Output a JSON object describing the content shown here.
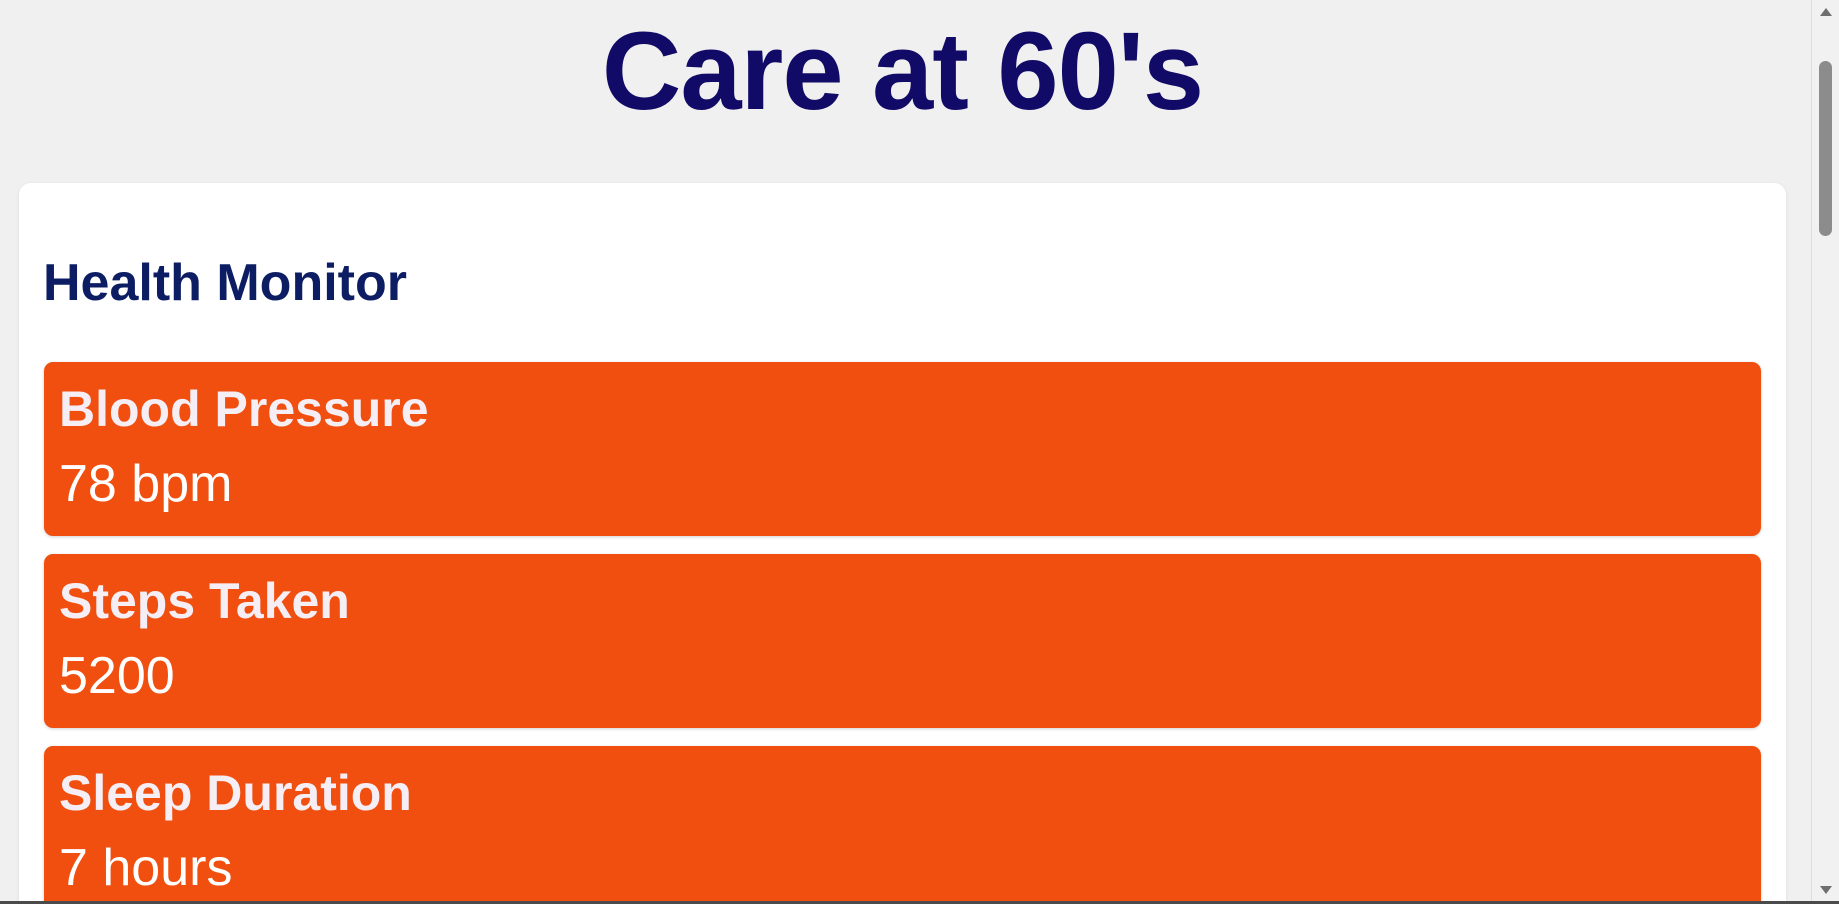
{
  "header": {
    "title": "Care at 60's"
  },
  "health_monitor": {
    "title": "Health Monitor",
    "metrics": [
      {
        "label": "Blood Pressure",
        "value": "78 bpm"
      },
      {
        "label": "Steps Taken",
        "value": "5200"
      },
      {
        "label": "Sleep Duration",
        "value": "7 hours"
      }
    ]
  },
  "icons": {
    "scroll_up": "scroll-up-arrow-icon",
    "scroll_down": "scroll-down-arrow-icon"
  },
  "colors": {
    "background": "#f0f0f0",
    "title": "#110a66",
    "section_title": "#0d1d63",
    "card": "#f14f0f",
    "card_text": "#ffffff"
  }
}
